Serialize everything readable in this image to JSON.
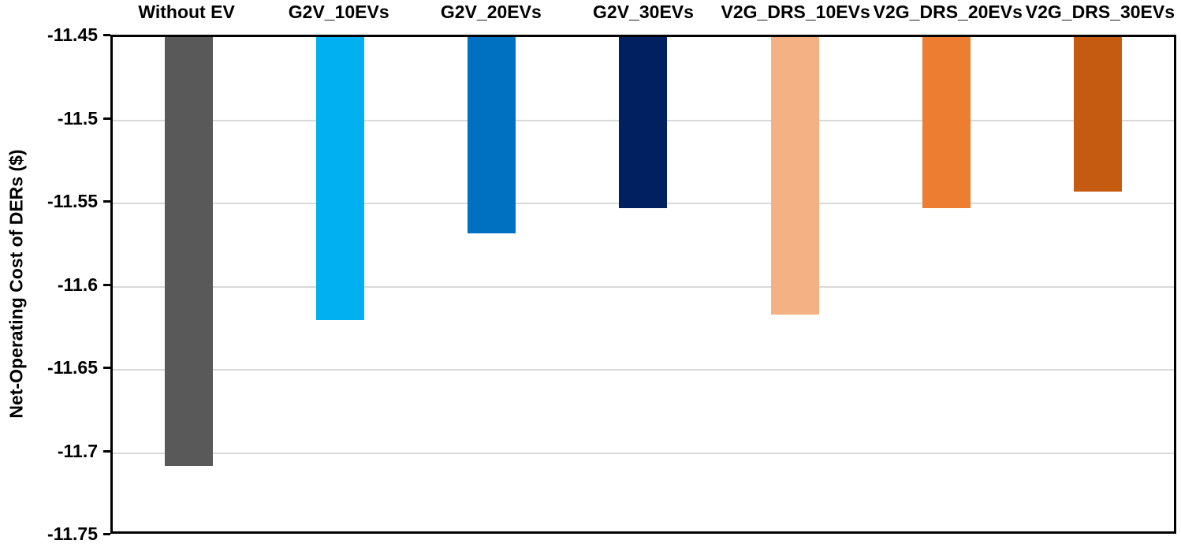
{
  "chart_data": {
    "type": "bar",
    "title": "",
    "xlabel": "",
    "ylabel": "Net-Operating Cost of DERs ($)",
    "categories": [
      "Without EV",
      "G2V_10EVs",
      "G2V_20EVs",
      "G2V_30EVs",
      "V2G_DRS_10EVs",
      "V2G_DRS_20EVs",
      "V2G_DRS_30EVs"
    ],
    "values": [
      -11.708,
      -11.62,
      -11.568,
      -11.553,
      -11.617,
      -11.553,
      -11.543
    ],
    "bar_colors": [
      "#595959",
      "#00B0F0",
      "#0070C0",
      "#002060",
      "#F4B183",
      "#ED7D31",
      "#C55A11"
    ],
    "ylim": [
      -11.75,
      -11.45
    ],
    "baseline": -11.45,
    "yticks": [
      -11.45,
      -11.5,
      -11.55,
      -11.6,
      -11.65,
      -11.7,
      -11.75
    ],
    "ytick_labels": [
      "-11.45",
      "-11.5",
      "-11.55",
      "-11.6",
      "-11.65",
      "-11.7",
      "-11.75"
    ],
    "grid": true,
    "legend": "none",
    "category_label_position": "top",
    "styles": {
      "gridline_color": "#d9d9d9",
      "axis_color": "#000000",
      "text_color": "#000000",
      "background": "#ffffff"
    }
  }
}
